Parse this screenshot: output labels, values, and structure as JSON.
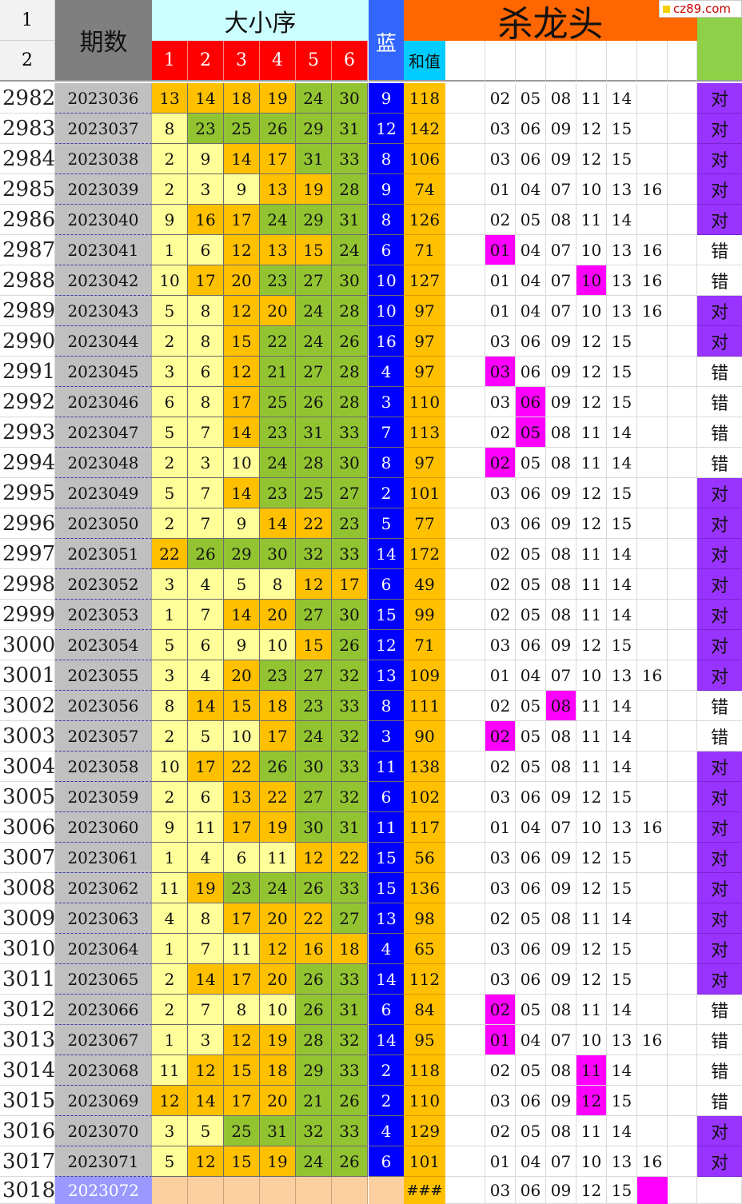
{
  "header": {
    "row_labels": [
      "1",
      "2"
    ],
    "period_label": "期数",
    "order_label": "大小序",
    "order_cols": [
      "1",
      "2",
      "3",
      "4",
      "5",
      "6"
    ],
    "blue_label": "蓝",
    "sum_label": "和值",
    "title": "杀龙头",
    "watermark": "cz89.com"
  },
  "colors": {
    "gray_col": "#c0c0c0",
    "header_cyan": "#ccffff",
    "header_red": "#ff0000",
    "header_blue": "#3366ff",
    "title_orange": "#ff6600",
    "sum_header": "#00ccff",
    "green_header": "#8ed047",
    "cell_pale": "#ffff99",
    "cell_orange": "#ffc000",
    "cell_green": "#92c432",
    "blue_cell": "#0000ff",
    "sum_cell": "#ffc000",
    "hit_magenta": "#ff00ff",
    "right_purple": "#9933ff",
    "last_row_period": "#9999ff",
    "last_row_peach": "#fbcf9f"
  },
  "rows": [
    {
      "row": "2982",
      "period": "2023036",
      "nums": [
        "13",
        "14",
        "18",
        "19",
        "24",
        "30"
      ],
      "cls": [
        "o",
        "o",
        "o",
        "o",
        "g",
        "g"
      ],
      "blue": "9",
      "sum": "118",
      "kill": [
        "02",
        "05",
        "08",
        "11",
        "14",
        ""
      ],
      "hit": -1,
      "result": "对"
    },
    {
      "row": "2983",
      "period": "2023037",
      "nums": [
        "8",
        "23",
        "25",
        "26",
        "29",
        "31"
      ],
      "cls": [
        "p",
        "g",
        "g",
        "g",
        "g",
        "g"
      ],
      "blue": "12",
      "sum": "142",
      "kill": [
        "03",
        "06",
        "09",
        "12",
        "15",
        ""
      ],
      "hit": -1,
      "result": "对"
    },
    {
      "row": "2984",
      "period": "2023038",
      "nums": [
        "2",
        "9",
        "14",
        "17",
        "31",
        "33"
      ],
      "cls": [
        "p",
        "p",
        "o",
        "o",
        "g",
        "g"
      ],
      "blue": "8",
      "sum": "106",
      "kill": [
        "03",
        "06",
        "09",
        "12",
        "15",
        ""
      ],
      "hit": -1,
      "result": "对"
    },
    {
      "row": "2985",
      "period": "2023039",
      "nums": [
        "2",
        "3",
        "9",
        "13",
        "19",
        "28"
      ],
      "cls": [
        "p",
        "p",
        "p",
        "o",
        "o",
        "g"
      ],
      "blue": "9",
      "sum": "74",
      "kill": [
        "01",
        "04",
        "07",
        "10",
        "13",
        "16"
      ],
      "hit": -1,
      "result": "对"
    },
    {
      "row": "2986",
      "period": "2023040",
      "nums": [
        "9",
        "16",
        "17",
        "24",
        "29",
        "31"
      ],
      "cls": [
        "p",
        "o",
        "o",
        "g",
        "g",
        "g"
      ],
      "blue": "8",
      "sum": "126",
      "kill": [
        "02",
        "05",
        "08",
        "11",
        "14",
        ""
      ],
      "hit": -1,
      "result": "对"
    },
    {
      "row": "2987",
      "period": "2023041",
      "nums": [
        "1",
        "6",
        "12",
        "13",
        "15",
        "24"
      ],
      "cls": [
        "p",
        "p",
        "o",
        "o",
        "o",
        "g"
      ],
      "blue": "6",
      "sum": "71",
      "kill": [
        "01",
        "04",
        "07",
        "10",
        "13",
        "16"
      ],
      "hit": 0,
      "result": "错"
    },
    {
      "row": "2988",
      "period": "2023042",
      "nums": [
        "10",
        "17",
        "20",
        "23",
        "27",
        "30"
      ],
      "cls": [
        "p",
        "o",
        "o",
        "g",
        "g",
        "g"
      ],
      "blue": "10",
      "sum": "127",
      "kill": [
        "01",
        "04",
        "07",
        "10",
        "13",
        "16"
      ],
      "hit": 3,
      "result": "错"
    },
    {
      "row": "2989",
      "period": "2023043",
      "nums": [
        "5",
        "8",
        "12",
        "20",
        "24",
        "28"
      ],
      "cls": [
        "p",
        "p",
        "o",
        "o",
        "g",
        "g"
      ],
      "blue": "10",
      "sum": "97",
      "kill": [
        "01",
        "04",
        "07",
        "10",
        "13",
        "16"
      ],
      "hit": -1,
      "result": "对"
    },
    {
      "row": "2990",
      "period": "2023044",
      "nums": [
        "2",
        "8",
        "15",
        "22",
        "24",
        "26"
      ],
      "cls": [
        "p",
        "p",
        "o",
        "g",
        "g",
        "g"
      ],
      "blue": "16",
      "sum": "97",
      "kill": [
        "03",
        "06",
        "09",
        "12",
        "15",
        ""
      ],
      "hit": -1,
      "result": "对"
    },
    {
      "row": "2991",
      "period": "2023045",
      "nums": [
        "3",
        "6",
        "12",
        "21",
        "27",
        "28"
      ],
      "cls": [
        "p",
        "p",
        "o",
        "g",
        "g",
        "g"
      ],
      "blue": "4",
      "sum": "97",
      "kill": [
        "03",
        "06",
        "09",
        "12",
        "15",
        ""
      ],
      "hit": 0,
      "result": "错"
    },
    {
      "row": "2992",
      "period": "2023046",
      "nums": [
        "6",
        "8",
        "17",
        "25",
        "26",
        "28"
      ],
      "cls": [
        "p",
        "p",
        "o",
        "g",
        "g",
        "g"
      ],
      "blue": "3",
      "sum": "110",
      "kill": [
        "03",
        "06",
        "09",
        "12",
        "15",
        ""
      ],
      "hit": 1,
      "result": "错"
    },
    {
      "row": "2993",
      "period": "2023047",
      "nums": [
        "5",
        "7",
        "14",
        "23",
        "31",
        "33"
      ],
      "cls": [
        "p",
        "p",
        "o",
        "g",
        "g",
        "g"
      ],
      "blue": "7",
      "sum": "113",
      "kill": [
        "02",
        "05",
        "08",
        "11",
        "14",
        ""
      ],
      "hit": 1,
      "result": "错"
    },
    {
      "row": "2994",
      "period": "2023048",
      "nums": [
        "2",
        "3",
        "10",
        "24",
        "28",
        "30"
      ],
      "cls": [
        "p",
        "p",
        "p",
        "g",
        "g",
        "g"
      ],
      "blue": "8",
      "sum": "97",
      "kill": [
        "02",
        "05",
        "08",
        "11",
        "14",
        ""
      ],
      "hit": 0,
      "result": "错"
    },
    {
      "row": "2995",
      "period": "2023049",
      "nums": [
        "5",
        "7",
        "14",
        "23",
        "25",
        "27"
      ],
      "cls": [
        "p",
        "p",
        "o",
        "g",
        "g",
        "g"
      ],
      "blue": "2",
      "sum": "101",
      "kill": [
        "03",
        "06",
        "09",
        "12",
        "15",
        ""
      ],
      "hit": -1,
      "result": "对"
    },
    {
      "row": "2996",
      "period": "2023050",
      "nums": [
        "2",
        "7",
        "9",
        "14",
        "22",
        "23"
      ],
      "cls": [
        "p",
        "p",
        "p",
        "o",
        "o",
        "g"
      ],
      "blue": "5",
      "sum": "77",
      "kill": [
        "03",
        "06",
        "09",
        "12",
        "15",
        ""
      ],
      "hit": -1,
      "result": "对"
    },
    {
      "row": "2997",
      "period": "2023051",
      "nums": [
        "22",
        "26",
        "29",
        "30",
        "32",
        "33"
      ],
      "cls": [
        "o",
        "g",
        "g",
        "g",
        "g",
        "g"
      ],
      "blue": "14",
      "sum": "172",
      "kill": [
        "02",
        "05",
        "08",
        "11",
        "14",
        ""
      ],
      "hit": -1,
      "result": "对"
    },
    {
      "row": "2998",
      "period": "2023052",
      "nums": [
        "3",
        "4",
        "5",
        "8",
        "12",
        "17"
      ],
      "cls": [
        "p",
        "p",
        "p",
        "p",
        "o",
        "o"
      ],
      "blue": "6",
      "sum": "49",
      "kill": [
        "02",
        "05",
        "08",
        "11",
        "14",
        ""
      ],
      "hit": -1,
      "result": "对"
    },
    {
      "row": "2999",
      "period": "2023053",
      "nums": [
        "1",
        "7",
        "14",
        "20",
        "27",
        "30"
      ],
      "cls": [
        "p",
        "p",
        "o",
        "o",
        "g",
        "g"
      ],
      "blue": "15",
      "sum": "99",
      "kill": [
        "02",
        "05",
        "08",
        "11",
        "14",
        ""
      ],
      "hit": -1,
      "result": "对"
    },
    {
      "row": "3000",
      "period": "2023054",
      "nums": [
        "5",
        "6",
        "9",
        "10",
        "15",
        "26"
      ],
      "cls": [
        "p",
        "p",
        "p",
        "p",
        "o",
        "g"
      ],
      "blue": "12",
      "sum": "71",
      "kill": [
        "03",
        "06",
        "09",
        "12",
        "15",
        ""
      ],
      "hit": -1,
      "result": "对"
    },
    {
      "row": "3001",
      "period": "2023055",
      "nums": [
        "3",
        "4",
        "20",
        "23",
        "27",
        "32"
      ],
      "cls": [
        "p",
        "p",
        "o",
        "g",
        "g",
        "g"
      ],
      "blue": "13",
      "sum": "109",
      "kill": [
        "01",
        "04",
        "07",
        "10",
        "13",
        "16"
      ],
      "hit": -1,
      "result": "对"
    },
    {
      "row": "3002",
      "period": "2023056",
      "nums": [
        "8",
        "14",
        "15",
        "18",
        "23",
        "33"
      ],
      "cls": [
        "p",
        "o",
        "o",
        "o",
        "g",
        "g"
      ],
      "blue": "8",
      "sum": "111",
      "kill": [
        "02",
        "05",
        "08",
        "11",
        "14",
        ""
      ],
      "hit": 2,
      "result": "错"
    },
    {
      "row": "3003",
      "period": "2023057",
      "nums": [
        "2",
        "5",
        "10",
        "17",
        "24",
        "32"
      ],
      "cls": [
        "p",
        "p",
        "p",
        "o",
        "g",
        "g"
      ],
      "blue": "3",
      "sum": "90",
      "kill": [
        "02",
        "05",
        "08",
        "11",
        "14",
        ""
      ],
      "hit": 0,
      "result": "错"
    },
    {
      "row": "3004",
      "period": "2023058",
      "nums": [
        "10",
        "17",
        "22",
        "26",
        "30",
        "33"
      ],
      "cls": [
        "p",
        "o",
        "o",
        "g",
        "g",
        "g"
      ],
      "blue": "11",
      "sum": "138",
      "kill": [
        "02",
        "05",
        "08",
        "11",
        "14",
        ""
      ],
      "hit": -1,
      "result": "对"
    },
    {
      "row": "3005",
      "period": "2023059",
      "nums": [
        "2",
        "6",
        "13",
        "22",
        "27",
        "32"
      ],
      "cls": [
        "p",
        "p",
        "o",
        "o",
        "g",
        "g"
      ],
      "blue": "6",
      "sum": "102",
      "kill": [
        "03",
        "06",
        "09",
        "12",
        "15",
        ""
      ],
      "hit": -1,
      "result": "对"
    },
    {
      "row": "3006",
      "period": "2023060",
      "nums": [
        "9",
        "11",
        "17",
        "19",
        "30",
        "31"
      ],
      "cls": [
        "p",
        "p",
        "o",
        "o",
        "g",
        "g"
      ],
      "blue": "11",
      "sum": "117",
      "kill": [
        "01",
        "04",
        "07",
        "10",
        "13",
        "16"
      ],
      "hit": -1,
      "result": "对"
    },
    {
      "row": "3007",
      "period": "2023061",
      "nums": [
        "1",
        "4",
        "6",
        "11",
        "12",
        "22"
      ],
      "cls": [
        "p",
        "p",
        "p",
        "p",
        "o",
        "o"
      ],
      "blue": "15",
      "sum": "56",
      "kill": [
        "03",
        "06",
        "09",
        "12",
        "15",
        ""
      ],
      "hit": -1,
      "result": "对"
    },
    {
      "row": "3008",
      "period": "2023062",
      "nums": [
        "11",
        "19",
        "23",
        "24",
        "26",
        "33"
      ],
      "cls": [
        "p",
        "o",
        "g",
        "g",
        "g",
        "g"
      ],
      "blue": "15",
      "sum": "136",
      "kill": [
        "03",
        "06",
        "09",
        "12",
        "15",
        ""
      ],
      "hit": -1,
      "result": "对"
    },
    {
      "row": "3009",
      "period": "2023063",
      "nums": [
        "4",
        "8",
        "17",
        "20",
        "22",
        "27"
      ],
      "cls": [
        "p",
        "p",
        "o",
        "o",
        "o",
        "g"
      ],
      "blue": "13",
      "sum": "98",
      "kill": [
        "02",
        "05",
        "08",
        "11",
        "14",
        ""
      ],
      "hit": -1,
      "result": "对"
    },
    {
      "row": "3010",
      "period": "2023064",
      "nums": [
        "1",
        "7",
        "11",
        "12",
        "16",
        "18"
      ],
      "cls": [
        "p",
        "p",
        "p",
        "o",
        "o",
        "o"
      ],
      "blue": "4",
      "sum": "65",
      "kill": [
        "03",
        "06",
        "09",
        "12",
        "15",
        ""
      ],
      "hit": -1,
      "result": "对"
    },
    {
      "row": "3011",
      "period": "2023065",
      "nums": [
        "2",
        "14",
        "17",
        "20",
        "26",
        "33"
      ],
      "cls": [
        "p",
        "o",
        "o",
        "o",
        "g",
        "g"
      ],
      "blue": "14",
      "sum": "112",
      "kill": [
        "03",
        "06",
        "09",
        "12",
        "15",
        ""
      ],
      "hit": -1,
      "result": "对"
    },
    {
      "row": "3012",
      "period": "2023066",
      "nums": [
        "2",
        "7",
        "8",
        "10",
        "26",
        "31"
      ],
      "cls": [
        "p",
        "p",
        "p",
        "p",
        "g",
        "g"
      ],
      "blue": "6",
      "sum": "84",
      "kill": [
        "02",
        "05",
        "08",
        "11",
        "14",
        ""
      ],
      "hit": 0,
      "result": "错"
    },
    {
      "row": "3013",
      "period": "2023067",
      "nums": [
        "1",
        "3",
        "12",
        "19",
        "28",
        "32"
      ],
      "cls": [
        "p",
        "p",
        "o",
        "o",
        "g",
        "g"
      ],
      "blue": "14",
      "sum": "95",
      "kill": [
        "01",
        "04",
        "07",
        "10",
        "13",
        "16"
      ],
      "hit": 0,
      "result": "错"
    },
    {
      "row": "3014",
      "period": "2023068",
      "nums": [
        "11",
        "12",
        "15",
        "18",
        "29",
        "33"
      ],
      "cls": [
        "p",
        "o",
        "o",
        "o",
        "g",
        "g"
      ],
      "blue": "2",
      "sum": "118",
      "kill": [
        "02",
        "05",
        "08",
        "11",
        "14",
        ""
      ],
      "hit": 3,
      "result": "错"
    },
    {
      "row": "3015",
      "period": "2023069",
      "nums": [
        "12",
        "14",
        "17",
        "20",
        "21",
        "26"
      ],
      "cls": [
        "o",
        "o",
        "o",
        "o",
        "g",
        "g"
      ],
      "blue": "2",
      "sum": "110",
      "kill": [
        "03",
        "06",
        "09",
        "12",
        "15",
        ""
      ],
      "hit": 3,
      "result": "错"
    },
    {
      "row": "3016",
      "period": "2023070",
      "nums": [
        "3",
        "5",
        "25",
        "31",
        "32",
        "33"
      ],
      "cls": [
        "p",
        "p",
        "g",
        "g",
        "g",
        "g"
      ],
      "blue": "4",
      "sum": "129",
      "kill": [
        "02",
        "05",
        "08",
        "11",
        "14",
        ""
      ],
      "hit": -1,
      "result": "对"
    },
    {
      "row": "3017",
      "period": "2023071",
      "nums": [
        "5",
        "12",
        "15",
        "19",
        "24",
        "26"
      ],
      "cls": [
        "p",
        "o",
        "o",
        "o",
        "g",
        "g"
      ],
      "blue": "6",
      "sum": "101",
      "kill": [
        "01",
        "04",
        "07",
        "10",
        "13",
        "16"
      ],
      "hit": -1,
      "result": "对"
    }
  ],
  "last_row": {
    "row": "3018",
    "period": "2023072",
    "sum": "###",
    "kill": [
      "03",
      "06",
      "09",
      "12",
      "15"
    ]
  }
}
